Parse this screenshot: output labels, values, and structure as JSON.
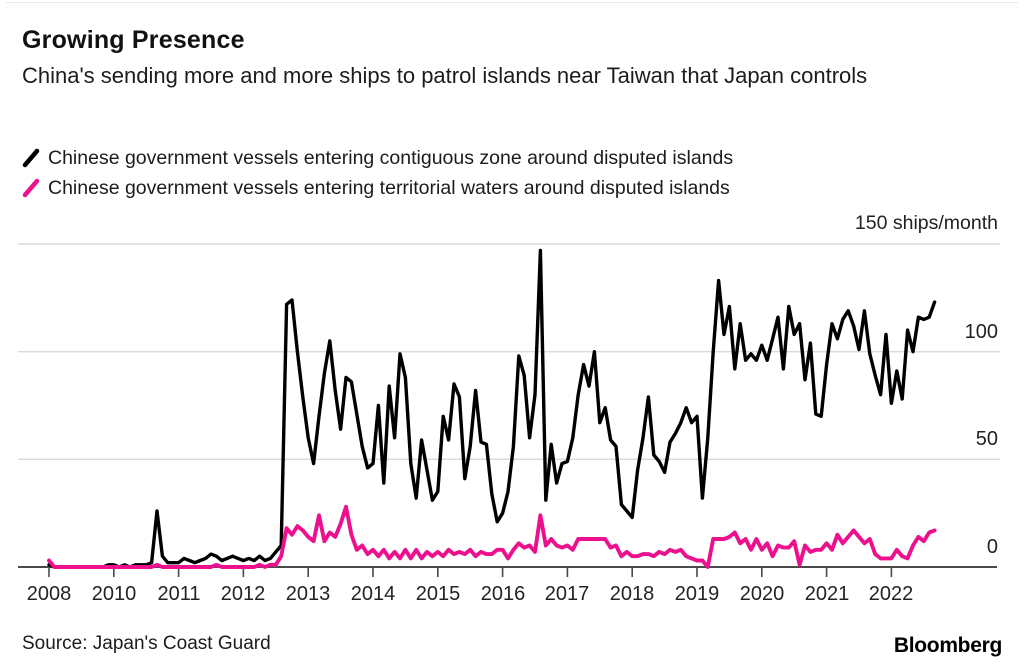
{
  "header": {
    "title": "Growing Presence",
    "subtitle": "China's sending more and more ships to patrol islands near Taiwan that Japan controls"
  },
  "legend": [
    {
      "label": "Chinese government vessels entering contiguous zone around disputed islands",
      "color": "#000000"
    },
    {
      "label": "Chinese government vessels entering territorial waters around disputed islands",
      "color": "#ED108E"
    }
  ],
  "axis": {
    "unit_label": "150 ships/month",
    "y_labels": [
      {
        "value": 100,
        "text": "100"
      },
      {
        "value": 50,
        "text": "50"
      },
      {
        "value": 0,
        "text": "0"
      }
    ],
    "x_labels": [
      "2008",
      "2010",
      "2011",
      "2012",
      "2013",
      "2014",
      "2015",
      "2016",
      "2017",
      "2018",
      "2019",
      "2020",
      "2021",
      "2022"
    ]
  },
  "footer": {
    "source": "Source: Japan's Coast Guard",
    "brand": "Bloomberg"
  },
  "colors": {
    "black_series": "#000000",
    "pink_series": "#ED108E",
    "gridline": "#d9d9d9",
    "axis_line": "#4a4a4a",
    "text": "#1c1c1c"
  },
  "chart_data": {
    "type": "line",
    "title": "Growing Presence",
    "ylabel": "ships/month",
    "ylim": [
      0,
      150
    ],
    "y_gridlines": [
      50,
      100,
      150
    ],
    "grid": "horizontal only",
    "legend_position": "top-left, slash markers",
    "x_note": "Monthly data, Jan 2008 through Sep 2022; year 2009 has no data points (x axis skips from 2008 to 2010)",
    "x_tick_labels": [
      "2008",
      "2010",
      "2011",
      "2012",
      "2013",
      "2014",
      "2015",
      "2016",
      "2017",
      "2018",
      "2019",
      "2020",
      "2021",
      "2022"
    ],
    "x_tick_month_index": [
      0,
      12,
      24,
      36,
      48,
      60,
      72,
      84,
      96,
      108,
      120,
      132,
      144,
      156
    ],
    "series": [
      {
        "name": "Chinese government vessels entering contiguous zone around disputed islands",
        "color": "#000000",
        "values": [
          1,
          0,
          0,
          0,
          0,
          0,
          0,
          0,
          0,
          0,
          0,
          1,
          1,
          0,
          1,
          0,
          1,
          1,
          1,
          2,
          26,
          5,
          2,
          2,
          2,
          4,
          3,
          2,
          3,
          4,
          6,
          5,
          3,
          4,
          5,
          4,
          3,
          4,
          3,
          5,
          3,
          4,
          7,
          10,
          122,
          124,
          100,
          79,
          60,
          48,
          70,
          90,
          105,
          82,
          64,
          88,
          86,
          71,
          56,
          46,
          48,
          75,
          39,
          84,
          60,
          99,
          88,
          48,
          32,
          59,
          45,
          31,
          35,
          70,
          59,
          85,
          79,
          41,
          56,
          82,
          58,
          57,
          34,
          21,
          25,
          35,
          56,
          98,
          89,
          60,
          80,
          147,
          31,
          57,
          39,
          48,
          49,
          60,
          80,
          94,
          84,
          100,
          67,
          74,
          59,
          56,
          29,
          26,
          23,
          45,
          60,
          79,
          52,
          49,
          44,
          58,
          62,
          67,
          74,
          67,
          70,
          32,
          60,
          100,
          133,
          108,
          121,
          92,
          113,
          96,
          99,
          96,
          103,
          96,
          106,
          116,
          92,
          121,
          108,
          113,
          87,
          104,
          71,
          70,
          94,
          113,
          106,
          115,
          119,
          112,
          101,
          119,
          99,
          89,
          80,
          108,
          76,
          91,
          78,
          110,
          100,
          116,
          115,
          116,
          123
        ]
      },
      {
        "name": "Chinese government vessels entering territorial waters around disputed islands",
        "color": "#ED108E",
        "values": [
          3,
          0,
          0,
          0,
          0,
          0,
          0,
          0,
          0,
          0,
          0,
          0,
          0,
          0,
          0,
          0,
          0,
          0,
          0,
          0,
          1,
          0,
          0,
          0,
          0,
          0,
          0,
          0,
          0,
          0,
          0,
          1,
          0,
          0,
          0,
          0,
          0,
          0,
          0,
          1,
          0,
          1,
          1,
          5,
          18,
          15,
          19,
          17,
          14,
          12,
          24,
          12,
          16,
          14,
          20,
          28,
          15,
          8,
          10,
          6,
          8,
          5,
          8,
          4,
          7,
          4,
          8,
          4,
          8,
          4,
          7,
          5,
          7,
          5,
          8,
          6,
          7,
          6,
          8,
          5,
          7,
          6,
          6,
          8,
          8,
          4,
          8,
          11,
          9,
          10,
          7,
          24,
          10,
          13,
          10,
          9,
          10,
          8,
          13,
          13,
          13,
          13,
          13,
          13,
          9,
          10,
          5,
          7,
          5,
          5,
          6,
          6,
          5,
          7,
          6,
          8,
          7,
          8,
          5,
          4,
          3,
          3,
          0,
          13,
          13,
          13,
          14,
          16,
          11,
          13,
          8,
          13,
          8,
          11,
          5,
          10,
          9,
          9,
          12,
          1,
          10,
          7,
          8,
          8,
          11,
          8,
          15,
          11,
          14,
          17,
          14,
          11,
          13,
          6,
          4,
          4,
          4,
          8,
          5,
          4,
          10,
          14,
          12,
          16,
          17
        ]
      }
    ]
  }
}
